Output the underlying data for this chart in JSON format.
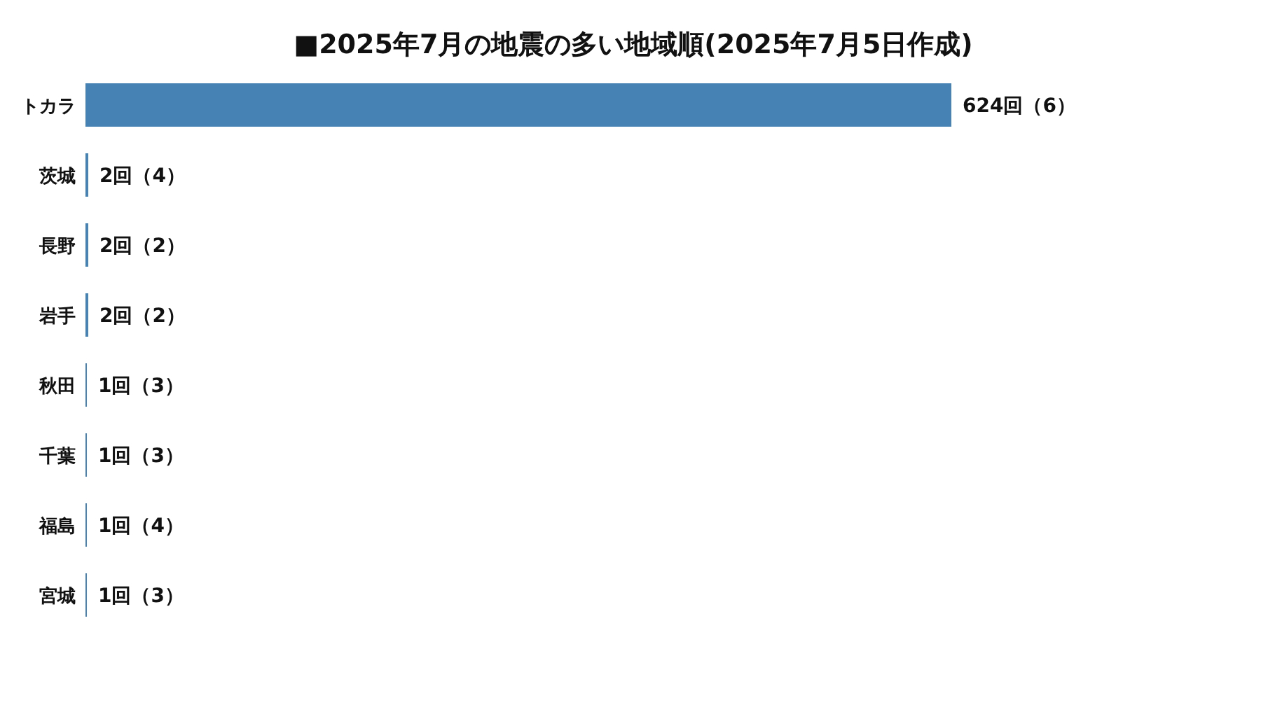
{
  "chart_data": {
    "type": "bar",
    "orientation": "horizontal",
    "title": "■2025年7月の地震の多い地域順(2025年7月5日作成)",
    "categories": [
      "トカラ",
      "茨城",
      "長野",
      "岩手",
      "秋田",
      "千葉",
      "福島",
      "宮城"
    ],
    "values": [
      624,
      2,
      2,
      2,
      1,
      1,
      1,
      1
    ],
    "value_labels": [
      "624回（6）",
      "2回（4）",
      "2回（2）",
      "2回（2）",
      "1回（3）",
      "1回（3）",
      "1回（4）",
      "1回（3）"
    ],
    "color": "#4682b4"
  }
}
